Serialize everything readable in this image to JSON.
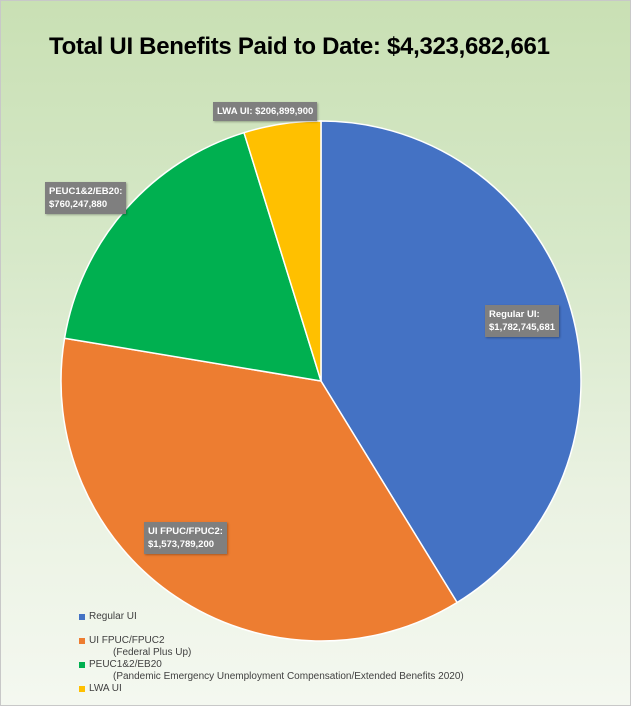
{
  "chart_data": {
    "type": "pie",
    "title": "Total UI Benefits Paid to Date: $4,323,682,661",
    "start_angle": "top, clockwise",
    "slices": [
      {
        "name": "Regular UI",
        "value": 1782745681,
        "label": "Regular UI: $1,782,745,681",
        "label_lines": [
          "Regular UI:",
          "$1,782,745,681"
        ],
        "color": "#4472c4",
        "legend": [
          "Regular UI"
        ]
      },
      {
        "name": "UI FPUC/FPUC2",
        "value": 1573789200,
        "label": "UI FPUC/FPUC2: $1,573,789,200",
        "label_lines": [
          "UI FPUC/FPUC2:",
          "$1,573,789,200"
        ],
        "color": "#ed7d31",
        "legend": [
          "UI FPUC/FPUC2",
          "(Federal Plus Up)"
        ]
      },
      {
        "name": "PEUC1&2/EB20",
        "value": 760247880,
        "label": "PEUC1&2/EB20: $760,247,880",
        "label_lines": [
          "PEUC1&2/EB20:",
          "$760,247,880"
        ],
        "color": "#00b050",
        "legend": [
          "PEUC1&2/EB20",
          "(Pandemic Emergency Unemployment Compensation/Extended Benefits 2020)"
        ]
      },
      {
        "name": "LWA UI",
        "value": 206899900,
        "label": "LWA UI: $206,899,900",
        "label_lines": [
          "LWA UI: $206,899,900"
        ],
        "color": "#ffc000",
        "legend": [
          "LWA UI"
        ]
      }
    ],
    "legend_position": "bottom-left"
  }
}
